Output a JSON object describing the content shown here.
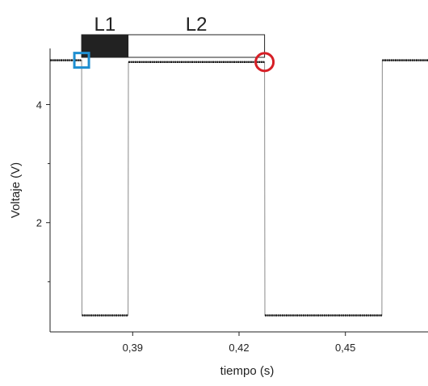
{
  "chart_data": {
    "type": "line",
    "xlabel": "tiempo (s)",
    "ylabel": "Voltaje (V)",
    "xlim": [
      0.3667,
      0.4733
    ],
    "ylim": [
      0.15,
      4.95
    ],
    "x_ticks": [
      {
        "value": 0.39,
        "label": "0,39"
      },
      {
        "value": 0.42,
        "label": "0,42"
      },
      {
        "value": 0.45,
        "label": "0,45"
      }
    ],
    "y_ticks": [
      {
        "value": 2,
        "label": "2"
      },
      {
        "value": 4,
        "label": "4"
      }
    ],
    "y_minor_ticks": [
      1,
      3
    ],
    "series": [
      {
        "color": "#555555",
        "x": [
          0.3667,
          0.3756,
          0.3757,
          0.3887,
          0.3888,
          0.4272,
          0.4273,
          0.4603,
          0.4604,
          0.4733
        ],
        "y": [
          4.75,
          4.75,
          0.43,
          0.43,
          4.72,
          4.72,
          0.43,
          0.43,
          4.75,
          4.75
        ]
      }
    ],
    "phase_bar": [
      {
        "label": "L1",
        "x_start": 0.3756,
        "x_end": 0.3887,
        "fill": "#222222"
      },
      {
        "label": "L2",
        "x_start": 0.3887,
        "x_end": 0.4272,
        "fill": "#ffffff"
      }
    ],
    "markers": [
      {
        "shape": "square",
        "x": 0.3756,
        "y": 4.75,
        "color": "#1e8ed0"
      },
      {
        "shape": "circle",
        "x": 0.4272,
        "y": 4.72,
        "color": "#d61f26"
      }
    ],
    "grid": false,
    "legend": "none"
  }
}
